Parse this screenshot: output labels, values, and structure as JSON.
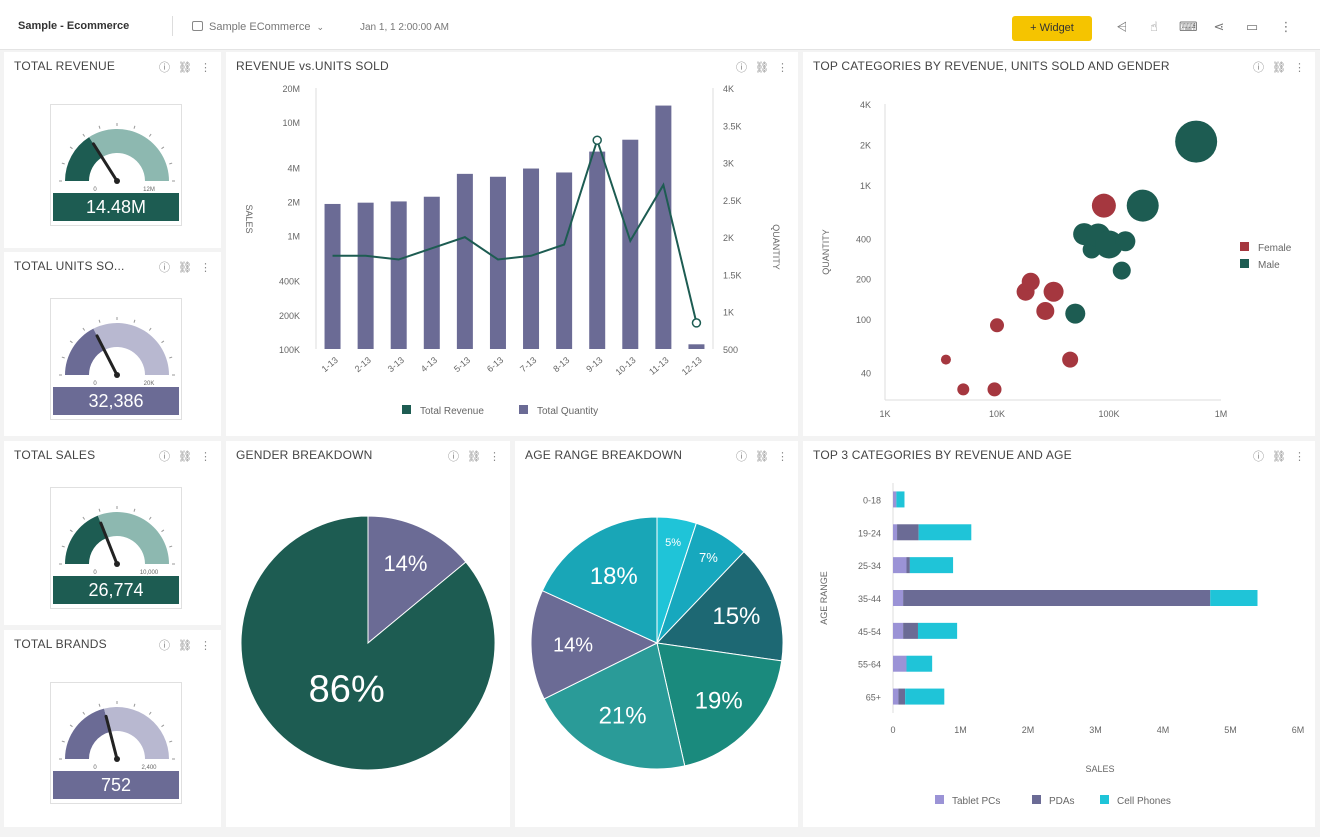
{
  "header": {
    "title": "Sample - Ecommerce",
    "datasource": "Sample ECommerce",
    "date": "Jan 1, 1 2:00:00 AM",
    "widget_button": "+ Widget"
  },
  "colors": {
    "teal_dark": "#1d5c52",
    "teal_light": "#8db8b0",
    "purple": "#6b6b95",
    "purple_light": "#b8b8d0",
    "cyan": "#1fc4d8",
    "lavender": "#9b93d6",
    "red": "#a5373f",
    "yellow": "#f5c400"
  },
  "gauges": [
    {
      "title": "TOTAL REVENUE",
      "value": "14.48M",
      "min": "0",
      "max": "12M",
      "color": "teal",
      "fraction": 0.32
    },
    {
      "title": "TOTAL UNITS SO...",
      "value": "32,386",
      "min": "0",
      "max": "20K",
      "color": "purple",
      "fraction": 0.35
    },
    {
      "title": "TOTAL SALES",
      "value": "26,774",
      "min": "0",
      "max": "10,000",
      "color": "teal",
      "fraction": 0.38
    },
    {
      "title": "TOTAL BRANDS",
      "value": "752",
      "min": "0",
      "max": "2,400",
      "color": "purple",
      "fraction": 0.42
    }
  ],
  "panels": {
    "revenue_units": "REVENUE vs.UNITS SOLD",
    "top_categories": "TOP CATEGORIES BY REVENUE, UNITS SOLD AND GENDER",
    "gender": "GENDER BREAKDOWN",
    "age_range": "AGE RANGE BREAKDOWN",
    "top3": "TOP 3 CATEGORIES BY REVENUE AND AGE"
  },
  "chart_data": [
    {
      "type": "bar",
      "title": "REVENUE vs.UNITS SOLD",
      "categories": [
        "1-13",
        "2-13",
        "3-13",
        "4-13",
        "5-13",
        "6-13",
        "7-13",
        "8-13",
        "9-13",
        "10-13",
        "11-13",
        "12-13"
      ],
      "series": [
        {
          "name": "Total Quantity",
          "type": "bar",
          "axis": "left",
          "values": [
            1900000,
            1950000,
            2000000,
            2200000,
            3500000,
            3300000,
            3900000,
            3600000,
            5500000,
            7000000,
            14000000,
            110000
          ]
        },
        {
          "name": "Total Revenue",
          "type": "line",
          "axis": "right",
          "values": [
            1750,
            1750,
            1700,
            1850,
            2000,
            1700,
            1750,
            1900,
            3300,
            1950,
            2700,
            850
          ]
        }
      ],
      "ylabel": "SALES",
      "y2label": "QUANTITY",
      "yticks": [
        "100K",
        "200K",
        "400K",
        "1M",
        "2M",
        "4M",
        "10M",
        "20M"
      ],
      "y2ticks": [
        "500",
        "1K",
        "1.5K",
        "2K",
        "2.5K",
        "3K",
        "3.5K",
        "4K"
      ],
      "legend": [
        "Total Revenue",
        "Total Quantity"
      ]
    },
    {
      "type": "scatter",
      "title": "TOP CATEGORIES BY REVENUE, UNITS SOLD AND GENDER",
      "xlabel": "",
      "ylabel": "QUANTITY",
      "xticks": [
        "1K",
        "10K",
        "100K",
        "1M"
      ],
      "yticks": [
        "40",
        "100",
        "200",
        "400",
        "1K",
        "2K",
        "4K"
      ],
      "series": [
        {
          "name": "Female",
          "points": [
            {
              "x": 3500,
              "y": 50,
              "s": 5
            },
            {
              "x": 5000,
              "y": 30,
              "s": 6
            },
            {
              "x": 9500,
              "y": 30,
              "s": 7
            },
            {
              "x": 10000,
              "y": 90,
              "s": 7
            },
            {
              "x": 18000,
              "y": 160,
              "s": 9
            },
            {
              "x": 20000,
              "y": 190,
              "s": 9
            },
            {
              "x": 27000,
              "y": 115,
              "s": 9
            },
            {
              "x": 32000,
              "y": 160,
              "s": 10
            },
            {
              "x": 45000,
              "y": 50,
              "s": 8
            },
            {
              "x": 90000,
              "y": 700,
              "s": 12
            }
          ]
        },
        {
          "name": "Male",
          "points": [
            {
              "x": 50000,
              "y": 110,
              "s": 10
            },
            {
              "x": 60000,
              "y": 430,
              "s": 11
            },
            {
              "x": 70000,
              "y": 330,
              "s": 9
            },
            {
              "x": 80000,
              "y": 420,
              "s": 12
            },
            {
              "x": 100000,
              "y": 360,
              "s": 14
            },
            {
              "x": 130000,
              "y": 230,
              "s": 9
            },
            {
              "x": 140000,
              "y": 380,
              "s": 10
            },
            {
              "x": 200000,
              "y": 700,
              "s": 16
            },
            {
              "x": 600000,
              "y": 2100,
              "s": 21
            }
          ]
        }
      ],
      "legend": [
        "Female",
        "Male"
      ]
    },
    {
      "type": "pie",
      "title": "GENDER BREAKDOWN",
      "slices": [
        {
          "label": "14%",
          "value": 14,
          "color": "#6b6b95"
        },
        {
          "label": "86%",
          "value": 86,
          "color": "#1d5c52"
        }
      ]
    },
    {
      "type": "pie",
      "title": "AGE RANGE BREAKDOWN",
      "slices": [
        {
          "label": "5%",
          "value": 5,
          "color": "#1fc4d8"
        },
        {
          "label": "7%",
          "value": 7,
          "color": "#17a8be"
        },
        {
          "label": "15%",
          "value": 15,
          "color": "#1d6873"
        },
        {
          "label": "19%",
          "value": 19,
          "color": "#1a8a7d"
        },
        {
          "label": "21%",
          "value": 21,
          "color": "#2a9b98"
        },
        {
          "label": "14%",
          "value": 14,
          "color": "#6b6b95"
        },
        {
          "label": "18%",
          "value": 18,
          "color": "#19a6b7"
        }
      ]
    },
    {
      "type": "bar",
      "orientation": "horizontal",
      "stacked": true,
      "title": "TOP 3 CATEGORIES BY REVENUE AND AGE",
      "categories": [
        "0-18",
        "19-24",
        "25-34",
        "35-44",
        "45-54",
        "55-64",
        "65+"
      ],
      "series": [
        {
          "name": "Tablet PCs",
          "color": "#9b93d6",
          "values": [
            50000,
            60000,
            200000,
            150000,
            150000,
            200000,
            80000
          ]
        },
        {
          "name": "PDAs",
          "color": "#6b6b95",
          "values": [
            0,
            320000,
            50000,
            4550000,
            220000,
            0,
            100000
          ]
        },
        {
          "name": "Cell Phones",
          "color": "#1fc4d8",
          "values": [
            120000,
            780000,
            640000,
            700000,
            580000,
            380000,
            580000
          ]
        }
      ],
      "xlabel": "SALES",
      "ylabel": "AGE RANGE",
      "xticks": [
        "0",
        "1M",
        "2M",
        "3M",
        "4M",
        "5M",
        "6M"
      ],
      "xlim": [
        0,
        6000000
      ],
      "legend": [
        "Tablet PCs",
        "PDAs",
        "Cell Phones"
      ]
    }
  ]
}
